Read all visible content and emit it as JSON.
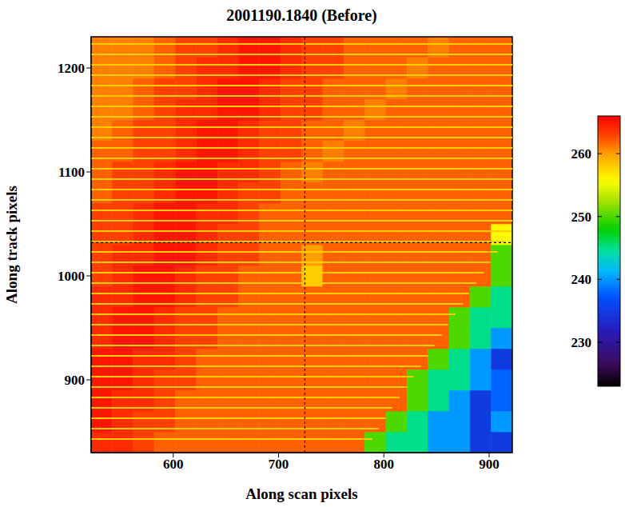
{
  "chart_data": {
    "type": "heatmap",
    "title": "2001190.1840 (Before)",
    "x_label": "Along scan pixels",
    "y_label": "Along track pixels",
    "xlim": [
      522,
      922
    ],
    "ylim": [
      830,
      1230
    ],
    "xticks": [
      600,
      700,
      800,
      900
    ],
    "yticks": [
      900,
      1000,
      1100,
      1200
    ],
    "x_edges": [
      522,
      542,
      562,
      582,
      602,
      622,
      642,
      662,
      682,
      702,
      722,
      742,
      762,
      782,
      802,
      822,
      842,
      862,
      882,
      902,
      922
    ],
    "y_edges": [
      830,
      850,
      870,
      890,
      910,
      930,
      950,
      970,
      990,
      1010,
      1030,
      1050,
      1070,
      1090,
      1110,
      1130,
      1150,
      1170,
      1190,
      1210,
      1230
    ],
    "cells": [
      [
        264,
        264,
        263,
        262,
        262,
        262,
        262,
        262,
        262,
        262,
        262,
        262,
        262,
        250,
        245,
        245,
        240,
        240,
        235,
        235
      ],
      [
        265,
        264,
        263,
        263,
        262,
        262,
        262,
        262,
        262,
        262,
        262,
        262,
        262,
        262,
        250,
        245,
        240,
        240,
        235,
        240
      ],
      [
        265,
        264,
        264,
        263,
        262,
        262,
        262,
        262,
        262,
        262,
        262,
        262,
        262,
        262,
        262,
        250,
        245,
        240,
        235,
        238
      ],
      [
        265,
        265,
        264,
        263,
        263,
        262,
        262,
        262,
        262,
        262,
        262,
        262,
        262,
        262,
        262,
        250,
        245,
        245,
        240,
        238
      ],
      [
        265,
        265,
        264,
        264,
        263,
        262,
        262,
        262,
        262,
        262,
        262,
        262,
        262,
        262,
        262,
        262,
        250,
        245,
        240,
        235
      ],
      [
        264,
        265,
        265,
        264,
        263,
        263,
        262,
        262,
        262,
        262,
        262,
        262,
        262,
        262,
        262,
        262,
        262,
        250,
        245,
        240
      ],
      [
        264,
        265,
        265,
        264,
        263,
        263,
        262,
        262,
        262,
        262,
        262,
        262,
        262,
        262,
        262,
        262,
        262,
        250,
        245,
        245
      ],
      [
        264,
        264,
        265,
        265,
        264,
        263,
        263,
        262,
        262,
        262,
        262,
        262,
        262,
        262,
        262,
        262,
        262,
        262,
        250,
        245
      ],
      [
        263,
        264,
        265,
        265,
        264,
        263,
        263,
        262,
        262,
        262,
        258,
        262,
        262,
        262,
        262,
        262,
        262,
        262,
        262,
        250
      ],
      [
        263,
        264,
        264,
        265,
        265,
        264,
        263,
        263,
        262,
        262,
        260,
        262,
        262,
        262,
        262,
        262,
        262,
        262,
        262,
        250
      ],
      [
        263,
        263,
        264,
        265,
        265,
        264,
        263,
        263,
        262,
        262,
        262,
        262,
        262,
        262,
        262,
        262,
        262,
        262,
        262,
        256
      ],
      [
        263,
        263,
        264,
        265,
        265,
        264,
        264,
        263,
        262,
        262,
        262,
        262,
        262,
        262,
        262,
        262,
        262,
        262,
        262,
        262
      ],
      [
        262,
        263,
        263,
        264,
        265,
        265,
        264,
        263,
        263,
        262,
        262,
        262,
        262,
        262,
        262,
        262,
        262,
        262,
        262,
        262
      ],
      [
        262,
        263,
        263,
        264,
        265,
        265,
        264,
        264,
        263,
        262,
        261,
        262,
        262,
        262,
        262,
        262,
        262,
        262,
        262,
        262
      ],
      [
        262,
        262,
        263,
        263,
        264,
        265,
        265,
        264,
        263,
        263,
        262,
        261,
        262,
        262,
        262,
        262,
        262,
        262,
        262,
        262
      ],
      [
        261,
        262,
        263,
        263,
        264,
        265,
        265,
        264,
        263,
        263,
        262,
        262,
        261,
        262,
        262,
        262,
        262,
        262,
        262,
        262
      ],
      [
        261,
        261,
        262,
        263,
        264,
        264,
        265,
        265,
        264,
        263,
        263,
        262,
        262,
        261,
        262,
        262,
        262,
        262,
        262,
        262
      ],
      [
        261,
        261,
        262,
        263,
        263,
        264,
        265,
        265,
        264,
        263,
        263,
        262,
        262,
        262,
        261,
        262,
        262,
        262,
        262,
        262
      ],
      [
        261,
        261,
        261,
        262,
        263,
        264,
        264,
        265,
        265,
        264,
        263,
        263,
        262,
        262,
        262,
        261,
        262,
        262,
        262,
        262
      ],
      [
        261,
        261,
        261,
        262,
        263,
        263,
        264,
        265,
        265,
        264,
        263,
        263,
        262,
        262,
        262,
        262,
        261,
        262,
        262,
        262
      ]
    ],
    "colorbar": {
      "range": [
        223,
        266
      ],
      "ticks": [
        230,
        240,
        250,
        260
      ]
    },
    "stripes": {
      "value": 258,
      "y": [
        843,
        853,
        863,
        873,
        883,
        893,
        903,
        913,
        923,
        933,
        943,
        953,
        963,
        973,
        983,
        993,
        1003,
        1013,
        1023,
        1033,
        1043,
        1053,
        1063,
        1073,
        1083,
        1093,
        1103,
        1113,
        1123,
        1133,
        1143,
        1153,
        1163,
        1173,
        1183,
        1193,
        1203,
        1213,
        1223
      ],
      "x_end": [
        789,
        795,
        802,
        808,
        815,
        822,
        828,
        835,
        842,
        848,
        855,
        861,
        868,
        875,
        881,
        888,
        895,
        901,
        908,
        914,
        921,
        922,
        922,
        922,
        922,
        922,
        922,
        922,
        922,
        922,
        922,
        922,
        922,
        922,
        922,
        922,
        922,
        922,
        922
      ]
    },
    "crosshair": {
      "x": 725,
      "y": 1032
    }
  }
}
